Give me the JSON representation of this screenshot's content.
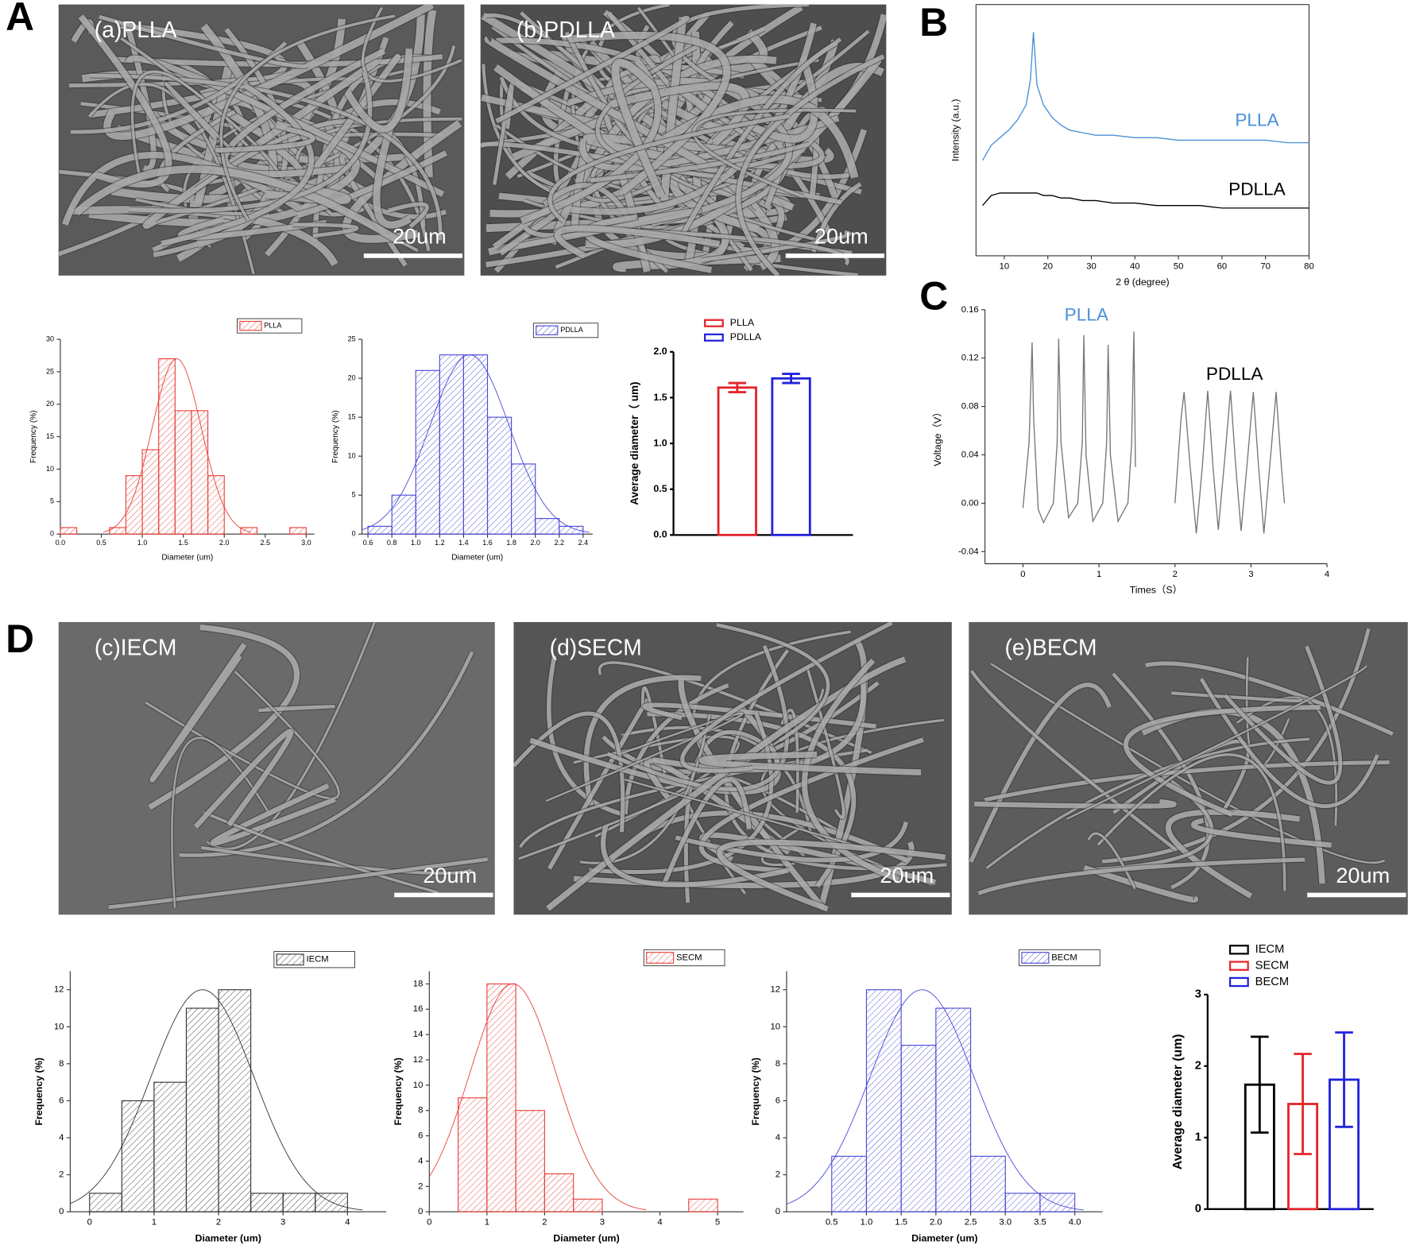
{
  "panels": [
    "A",
    "B",
    "C",
    "D"
  ],
  "images": [
    {
      "label": "(a)PLLA",
      "scale_bar": "20um"
    },
    {
      "label": "(b)PDLLA",
      "scale_bar": "20um"
    },
    {
      "label": "(c)IECM",
      "scale_bar": "20um"
    },
    {
      "label": "(d)SECM",
      "scale_bar": "20um"
    },
    {
      "label": "(e)BECM",
      "scale_bar": "20um"
    }
  ],
  "chart_data": [
    {
      "type": "histogram",
      "name": "PLLA",
      "color": "#e8413a",
      "bins": [
        0,
        0.2,
        0.4,
        0.6,
        0.8,
        1.0,
        1.2,
        1.4,
        1.6,
        1.8,
        2.0,
        2.2,
        2.4,
        2.6,
        2.8,
        3.0
      ],
      "counts": [
        1,
        0,
        0,
        1,
        9,
        13,
        27,
        19,
        19,
        9,
        0,
        1,
        0,
        0,
        1
      ],
      "fit": {
        "mean": 1.42,
        "sd": 0.3,
        "peak": 27
      },
      "xlim": [
        0,
        3.1
      ],
      "ylim": [
        0,
        30
      ],
      "xticks": [
        {
          "value": 0,
          "label": "0.0"
        },
        0.5,
        {
          "value": 1,
          "label": "1.0"
        },
        1.5,
        {
          "value": 2,
          "label": "2.0"
        },
        2.5,
        {
          "value": 3,
          "label": "3.0"
        }
      ],
      "yticks": [
        0,
        5,
        10,
        15,
        20,
        25,
        30
      ],
      "xlabel": "Diameter (um)",
      "ylabel": "Frequency (%)"
    },
    {
      "type": "histogram",
      "name": "PDLLA",
      "color": "#4a4ad8",
      "bins": [
        0.6,
        0.8,
        1.0,
        1.2,
        1.4,
        1.6,
        1.8,
        2.0,
        2.2,
        2.4
      ],
      "counts": [
        1,
        5,
        21,
        23,
        23,
        15,
        9,
        2,
        1
      ],
      "fit": {
        "mean": 1.45,
        "sd": 0.33,
        "peak": 23
      },
      "xlim": [
        0.55,
        2.48
      ],
      "ylim": [
        0,
        25
      ],
      "xticks": [
        0.6,
        {
          "value": 0.8,
          "label": "0.8"
        },
        {
          "value": 1,
          "label": "1.0"
        },
        1.2,
        1.4,
        1.6,
        1.8,
        {
          "value": 2,
          "label": "2.0"
        },
        2.2,
        2.4
      ],
      "yticks": [
        0,
        5,
        10,
        15,
        20,
        25
      ],
      "xlabel": "Diameter (um)",
      "ylabel": "Frequency (%)"
    },
    {
      "type": "bar",
      "categories": [
        "PLLA",
        "PDLLA"
      ],
      "colors": [
        "#e3242b",
        "#2222dd"
      ],
      "values": [
        1.61,
        1.71
      ],
      "errors": [
        0.05,
        0.05
      ],
      "ylim": [
        0,
        2.0
      ],
      "yticks": [
        {
          "value": 0,
          "label": "0.0"
        },
        0.5,
        {
          "value": 1,
          "label": "1.0"
        },
        1.5,
        {
          "value": 2,
          "label": "2.0"
        }
      ],
      "ylabel": "Average diameter（ um)"
    },
    {
      "type": "line",
      "x": [
        5,
        7,
        9,
        11,
        13,
        15,
        16,
        16.7,
        17.5,
        19,
        21,
        23,
        25,
        28,
        31,
        35,
        40,
        45,
        50,
        55,
        60,
        65,
        70,
        75,
        80
      ],
      "series": [
        {
          "name": "PLLA",
          "color": "#4a90d9",
          "values": [
            38,
            44,
            47,
            50,
            54,
            60,
            70,
            89,
            68,
            60,
            55,
            52,
            50,
            49,
            48,
            48,
            47,
            47,
            46,
            46,
            46,
            46,
            46,
            45,
            45
          ]
        },
        {
          "name": "PDLLA",
          "color": "#000000",
          "values": [
            20,
            24,
            25,
            25,
            25,
            25,
            25,
            25,
            25,
            24,
            24,
            23,
            23,
            22,
            22,
            21,
            21,
            20,
            20,
            20,
            19,
            19,
            19,
            19,
            19
          ]
        }
      ],
      "xlim": [
        3.5,
        80
      ],
      "ylim": [
        0,
        100
      ],
      "xticks": [
        10,
        20,
        30,
        40,
        50,
        60,
        70,
        80
      ],
      "xlabel": "2 θ (degree)",
      "ylabel": "Intensity (a.u.)"
    },
    {
      "type": "line",
      "series": [
        {
          "name": "PLLA",
          "color": "#777777",
          "label_color": "#4a90d9",
          "x": [
            0,
            0.08,
            0.12,
            0.14,
            0.2,
            0.27,
            0.4,
            0.45,
            0.47,
            0.5,
            0.6,
            0.72,
            0.78,
            0.8,
            0.83,
            0.92,
            1.05,
            1.1,
            1.12,
            1.15,
            1.25,
            1.38,
            1.43,
            1.46,
            1.48
          ],
          "values": [
            -0.004,
            0.05,
            0.133,
            0.07,
            -0.005,
            -0.016,
            0.0,
            0.05,
            0.136,
            0.05,
            -0.012,
            0.0,
            0.05,
            0.139,
            0.04,
            -0.015,
            0.0,
            0.05,
            0.131,
            0.04,
            -0.015,
            0.0,
            0.05,
            0.142,
            0.03
          ]
        },
        {
          "name": "PDLLA",
          "color": "#777777",
          "label_color": "#000000",
          "x": [
            2.0,
            2.08,
            2.12,
            2.2,
            2.28,
            2.36,
            2.43,
            2.5,
            2.57,
            2.66,
            2.73,
            2.8,
            2.87,
            2.96,
            3.03,
            3.1,
            3.17,
            3.26,
            3.33,
            3.4,
            3.44
          ],
          "values": [
            0.0,
            0.07,
            0.092,
            0.03,
            -0.025,
            0.03,
            0.093,
            0.03,
            -0.022,
            0.04,
            0.093,
            0.03,
            -0.023,
            0.04,
            0.092,
            0.03,
            -0.025,
            0.04,
            0.092,
            0.03,
            0.0
          ]
        }
      ],
      "xlim": [
        -0.5,
        4
      ],
      "ylim": [
        -0.05,
        0.16
      ],
      "xticks": [
        0,
        1,
        2,
        3,
        4
      ],
      "yticks": [
        -0.04,
        {
          "value": 0,
          "label": "0.00"
        },
        0.04,
        0.08,
        0.12,
        0.16
      ],
      "xlabel": "Times（S）",
      "ylabel": "Voltage（V）"
    },
    {
      "type": "histogram",
      "name": "IECM",
      "color": "#333333",
      "bins": [
        0,
        0.5,
        1,
        1.5,
        2,
        2.5,
        3,
        3.5,
        4
      ],
      "counts": [
        1,
        6,
        7,
        11,
        12,
        1,
        1,
        1
      ],
      "fit": {
        "mean": 1.75,
        "sd": 0.8,
        "peak": 12
      },
      "xlim": [
        -0.3,
        4.6
      ],
      "ylim": [
        0,
        13
      ],
      "xticks": [
        0,
        1,
        2,
        3,
        4
      ],
      "yticks": [
        0,
        2,
        4,
        6,
        8,
        10,
        12
      ],
      "xlabel": "Diameter (um)",
      "ylabel": "Frequency (%)"
    },
    {
      "type": "histogram",
      "name": "SECM",
      "color": "#e8413a",
      "bins": [
        0.5,
        1,
        1.5,
        2,
        2.5,
        3,
        3.5,
        4,
        4.5,
        5
      ],
      "counts": [
        9,
        18,
        8,
        3,
        1,
        0,
        0,
        0,
        1
      ],
      "fit": {
        "mean": 1.45,
        "sd": 0.75,
        "peak": 18
      },
      "xlim": [
        0,
        5.45
      ],
      "ylim": [
        0,
        19
      ],
      "xticks": [
        0,
        1,
        2,
        3,
        4,
        5
      ],
      "yticks": [
        0,
        2,
        4,
        6,
        8,
        10,
        12,
        14,
        16,
        18
      ],
      "xlabel": "Diameter (um)",
      "ylabel": "Frequency (%)"
    },
    {
      "type": "histogram",
      "name": "BECM",
      "color": "#4a4ad8",
      "bins": [
        0.5,
        1,
        1.5,
        2,
        2.5,
        3,
        3.5,
        4
      ],
      "counts": [
        3,
        12,
        9,
        11,
        3,
        1,
        1
      ],
      "fit": {
        "mean": 1.8,
        "sd": 0.75,
        "peak": 12
      },
      "xlim": [
        -0.15,
        4.4
      ],
      "ylim": [
        0,
        13
      ],
      "xticks": [
        0.5,
        {
          "value": 1,
          "label": "1.0"
        },
        1.5,
        {
          "value": 2,
          "label": "2.0"
        },
        2.5,
        {
          "value": 3,
          "label": "3.0"
        },
        3.5,
        {
          "value": 4,
          "label": "4.0"
        }
      ],
      "yticks": [
        0,
        2,
        4,
        6,
        8,
        10,
        12
      ],
      "xlabel": "Diameter (um)",
      "ylabel": "Frequency (%)"
    },
    {
      "type": "bar",
      "categories": [
        "IECM",
        "SECM",
        "BECM"
      ],
      "colors": [
        "#000000",
        "#e3242b",
        "#2222dd"
      ],
      "values": [
        1.74,
        1.47,
        1.81
      ],
      "errors": [
        0.67,
        0.7,
        0.66
      ],
      "ylim": [
        0,
        3
      ],
      "yticks": [
        0,
        1,
        2,
        3
      ],
      "ylabel": "Average diameter (um)"
    }
  ]
}
